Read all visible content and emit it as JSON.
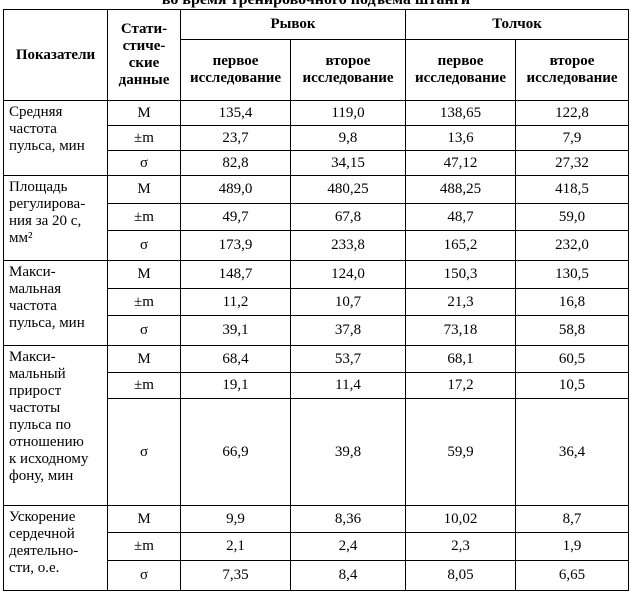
{
  "title": "во время тренировочного подъема штанги",
  "header": {
    "indicator": "Показатели",
    "stat": "Стати-\nстиче-\nские\nданные",
    "snatch": "Рывок",
    "clean": "Толчок",
    "subheaders": [
      "первое\nисследование",
      "второе\nисследование",
      "первое\nисследование",
      "второе\nисследование"
    ]
  },
  "groups": [
    {
      "label": "Средняя\nчастота\nпульса, мин",
      "rows": [
        {
          "stat": "М",
          "values": [
            "135,4",
            "119,0",
            "138,65",
            "122,8"
          ]
        },
        {
          "stat": "±m",
          "values": [
            "23,7",
            "9,8",
            "13,6",
            "7,9"
          ]
        },
        {
          "stat": "σ",
          "values": [
            "82,8",
            "34,15",
            "47,12",
            "27,32"
          ]
        }
      ]
    },
    {
      "label": "Площадь\nрегулирова-\nния за 20 с,\nмм²",
      "rows": [
        {
          "stat": "М",
          "values": [
            "489,0",
            "480,25",
            "488,25",
            "418,5"
          ]
        },
        {
          "stat": "±m",
          "values": [
            "49,7",
            "67,8",
            "48,7",
            "59,0"
          ]
        },
        {
          "stat": "σ",
          "values": [
            "173,9",
            "233,8",
            "165,2",
            "232,0"
          ]
        }
      ]
    },
    {
      "label": "Макси-\nмальная\nчастота\nпульса, мин",
      "rows": [
        {
          "stat": "М",
          "values": [
            "148,7",
            "124,0",
            "150,3",
            "130,5"
          ]
        },
        {
          "stat": "±m",
          "values": [
            "11,2",
            "10,7",
            "21,3",
            "16,8"
          ]
        },
        {
          "stat": "σ",
          "values": [
            "39,1",
            "37,8",
            "73,18",
            "58,8"
          ]
        }
      ]
    },
    {
      "label": "Макси-\nмальный\nприрост\nчастоты\nпульса по\nотношению\nк исходному\nфону, мин",
      "rows": [
        {
          "stat": "М",
          "values": [
            "68,4",
            "53,7",
            "68,1",
            "60,5"
          ]
        },
        {
          "stat": "±m",
          "values": [
            "19,1",
            "11,4",
            "17,2",
            "10,5"
          ]
        },
        {
          "stat": "σ",
          "values": [
            "66,9",
            "39,8",
            "59,9",
            "36,4"
          ]
        }
      ]
    },
    {
      "label": "Ускорение\nсердечной\nдеятельно-\nсти, о.е.",
      "rows": [
        {
          "stat": "М",
          "values": [
            "9,9",
            "8,36",
            "10,02",
            "8,7"
          ]
        },
        {
          "stat": "±m",
          "values": [
            "2,1",
            "2,4",
            "2,3",
            "1,9"
          ]
        },
        {
          "stat": "σ",
          "values": [
            "7,35",
            "8,4",
            "8,05",
            "6,65"
          ]
        }
      ]
    }
  ]
}
